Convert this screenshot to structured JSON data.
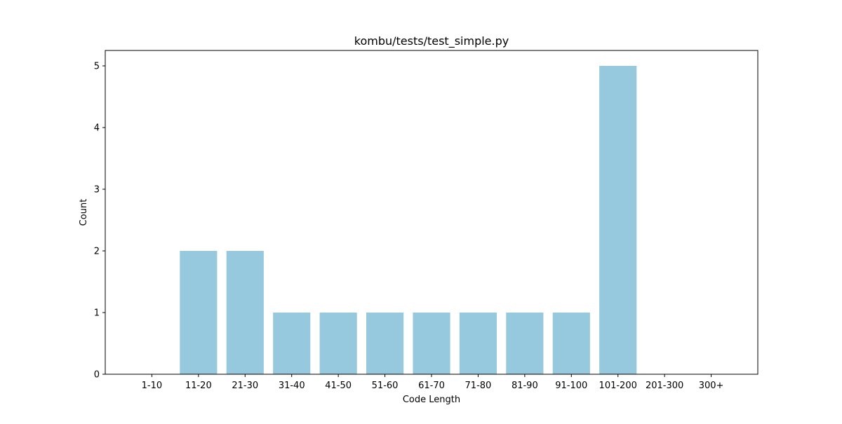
{
  "chart_data": {
    "type": "bar",
    "title": "kombu/tests/test_simple.py",
    "xlabel": "Code Length",
    "ylabel": "Count",
    "categories": [
      "1-10",
      "11-20",
      "21-30",
      "31-40",
      "41-50",
      "51-60",
      "61-70",
      "71-80",
      "81-90",
      "91-100",
      "101-200",
      "201-300",
      "300+"
    ],
    "values": [
      0,
      2,
      2,
      1,
      1,
      1,
      1,
      1,
      1,
      1,
      5,
      0,
      0
    ],
    "ylim": [
      0,
      5.25
    ],
    "yticks": [
      0,
      1,
      2,
      3,
      4,
      5
    ],
    "bar_color": "#96c9dd",
    "grid": false,
    "legend": "none"
  }
}
